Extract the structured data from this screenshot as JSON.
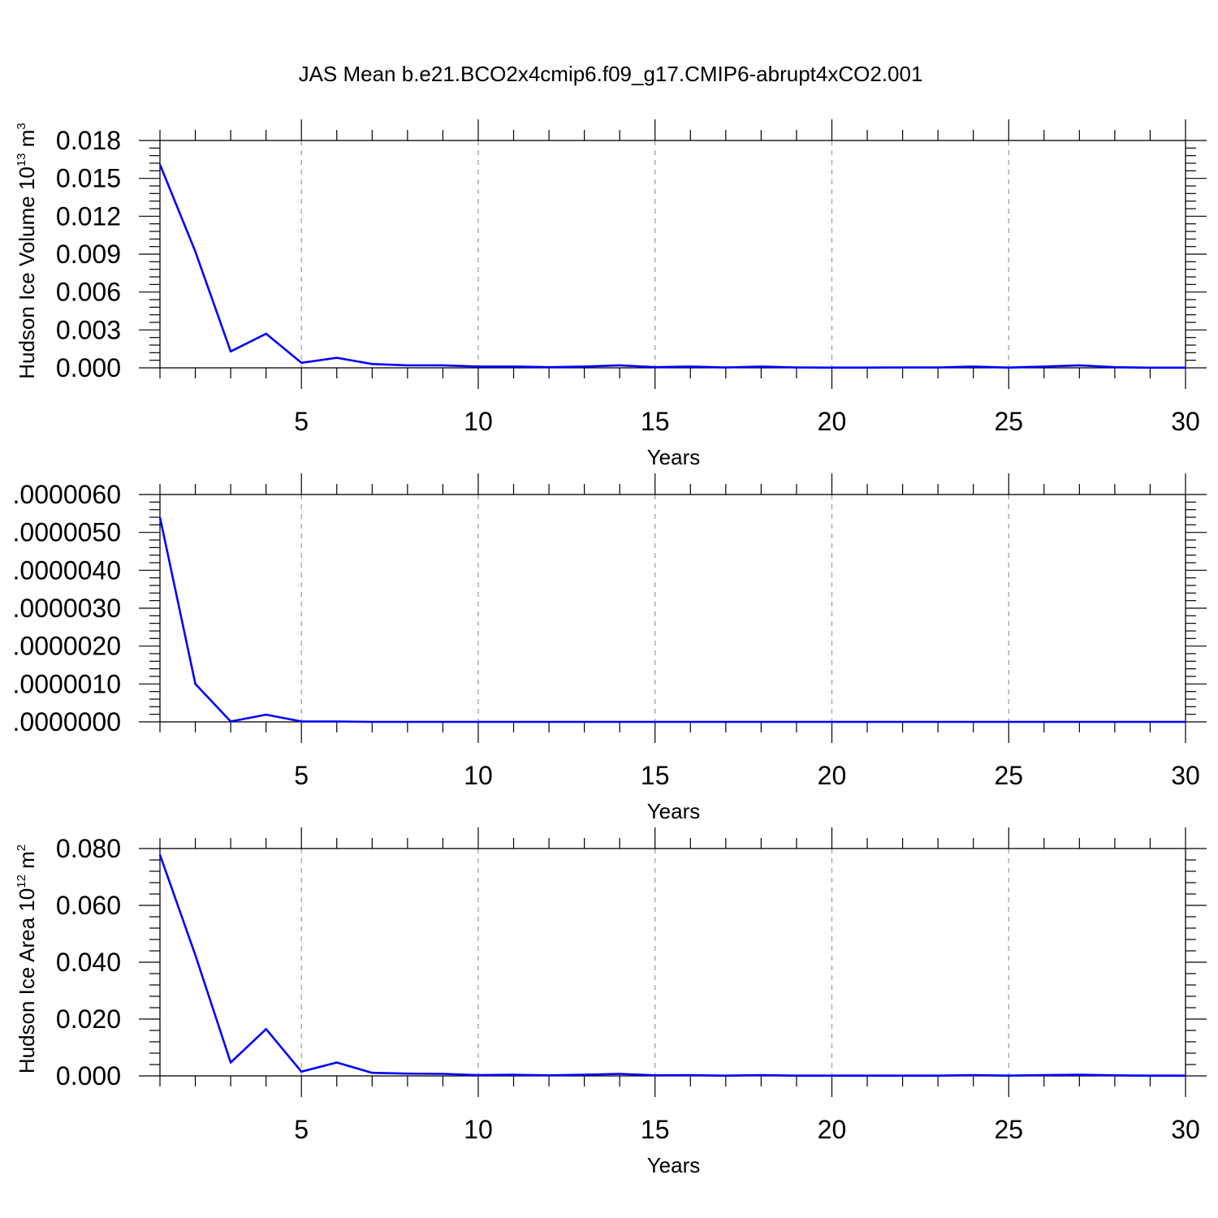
{
  "title": "JAS Mean b.e21.BCO2x4cmip6.f09_g17.CMIP6-abrupt4xCO2.001",
  "colors": {
    "line": "#0000ff",
    "axes": "#000000",
    "grid": "#9a9a9a"
  },
  "chart_data": [
    {
      "type": "line",
      "xlabel": "Years",
      "ylabel": {
        "text": "Hudson Ice Volume 10",
        "exponent": "13",
        "unit": "m",
        "unit_exponent": "3"
      },
      "xlim": [
        1,
        30
      ],
      "ylim": [
        0,
        0.018
      ],
      "xticks": [
        5,
        10,
        15,
        20,
        25,
        30
      ],
      "xtick_labels": [
        "5",
        "10",
        "15",
        "20",
        "25",
        "30"
      ],
      "yticks": [
        0,
        0.003,
        0.006,
        0.009,
        0.012,
        0.015,
        0.018
      ],
      "ytick_labels": [
        "0.000",
        "0.003",
        "0.006",
        "0.009",
        "0.012",
        "0.015",
        "0.018"
      ],
      "grid": "vertical dashed at major x ticks",
      "x": [
        1,
        2,
        3,
        4,
        5,
        6,
        7,
        8,
        9,
        10,
        11,
        12,
        13,
        14,
        15,
        16,
        17,
        18,
        19,
        20,
        21,
        22,
        23,
        24,
        25,
        26,
        27,
        28,
        29,
        30
      ],
      "series": [
        {
          "values": [
            0.0161,
            0.0092,
            0.0013,
            0.0027,
            0.0004,
            0.0008,
            0.0003,
            0.0002,
            0.0002,
            0.0001,
            0.0001,
            5e-05,
            0.0001,
            0.0002,
            5e-05,
            0.0001,
            3e-05,
            0.0001,
            3e-05,
            2e-05,
            2e-05,
            3e-05,
            3e-05,
            0.0001,
            2e-05,
            0.0001,
            0.0002,
            5e-05,
            1e-05,
            1e-05
          ]
        }
      ]
    },
    {
      "type": "line",
      "xlabel": "Years",
      "ylabel": null,
      "xlim": [
        1,
        30
      ],
      "ylim": [
        0,
        6e-06
      ],
      "xticks": [
        5,
        10,
        15,
        20,
        25,
        30
      ],
      "xtick_labels": [
        "5",
        "10",
        "15",
        "20",
        "25",
        "30"
      ],
      "yticks": [
        0,
        1e-06,
        2e-06,
        3e-06,
        4e-06,
        5e-06,
        6e-06
      ],
      "ytick_labels": [
        ".0000000",
        ".0000010",
        ".0000020",
        ".0000030",
        ".0000040",
        ".0000050",
        ".0000060"
      ],
      "grid": "vertical dashed at major x ticks",
      "x": [
        1,
        2,
        3,
        4,
        5,
        6,
        7,
        8,
        9,
        10,
        11,
        12,
        13,
        14,
        15,
        16,
        17,
        18,
        19,
        20,
        21,
        22,
        23,
        24,
        25,
        26,
        27,
        28,
        29,
        30
      ],
      "series": [
        {
          "values": [
            5.4e-06,
            1e-06,
            1e-08,
            1.9e-07,
            1e-08,
            1e-08,
            0,
            0,
            0,
            0,
            0,
            0,
            0,
            0,
            0,
            0,
            0,
            0,
            0,
            0,
            0,
            0,
            0,
            0,
            0,
            0,
            0,
            0,
            0,
            0
          ]
        }
      ]
    },
    {
      "type": "line",
      "xlabel": "Years",
      "ylabel": {
        "text": "Hudson Ice Area 10",
        "exponent": "12",
        "unit": "m",
        "unit_exponent": "2"
      },
      "xlim": [
        1,
        30
      ],
      "ylim": [
        0,
        0.08
      ],
      "xticks": [
        5,
        10,
        15,
        20,
        25,
        30
      ],
      "xtick_labels": [
        "5",
        "10",
        "15",
        "20",
        "25",
        "30"
      ],
      "yticks": [
        0,
        0.02,
        0.04,
        0.06,
        0.08
      ],
      "ytick_labels": [
        "0.000",
        "0.020",
        "0.040",
        "0.060",
        "0.080"
      ],
      "grid": "vertical dashed at major x ticks",
      "x": [
        1,
        2,
        3,
        4,
        5,
        6,
        7,
        8,
        9,
        10,
        11,
        12,
        13,
        14,
        15,
        16,
        17,
        18,
        19,
        20,
        21,
        22,
        23,
        24,
        25,
        26,
        27,
        28,
        29,
        30
      ],
      "series": [
        {
          "values": [
            0.0778,
            0.0425,
            0.0047,
            0.0165,
            0.0015,
            0.0047,
            0.0011,
            0.0008,
            0.0007,
            0.0003,
            0.0004,
            0.0002,
            0.0004,
            0.0007,
            0.0002,
            0.0003,
            0.0001,
            0.0003,
            0.0001,
            0.0001,
            0.0001,
            0.0001,
            0.0001,
            0.0003,
            0.0001,
            0.0003,
            0.0004,
            0.0002,
            0.0001,
            0.0001
          ]
        }
      ]
    }
  ]
}
